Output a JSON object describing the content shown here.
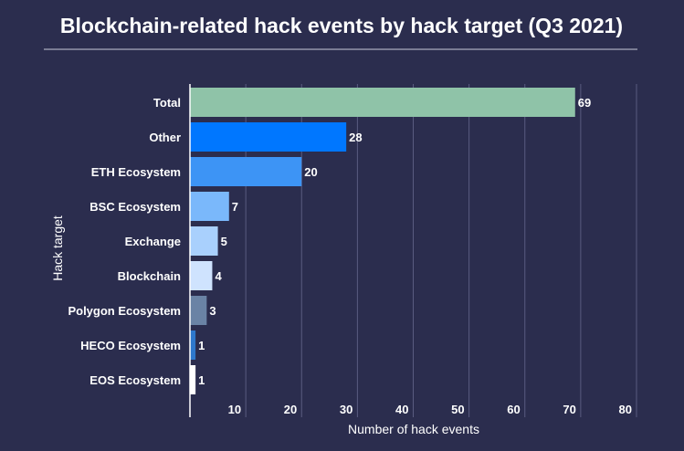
{
  "chart_data": {
    "type": "bar",
    "orientation": "horizontal",
    "title": "Blockchain-related hack events by hack target (Q3 2021)",
    "xlabel": "Number of hack events",
    "ylabel": "Hack target",
    "categories": [
      "Total",
      "Other",
      "ETH Ecosystem",
      "BSC Ecosystem",
      "Exchange",
      "Blockchain",
      "Polygon Ecosystem",
      "HECO Ecosystem",
      "EOS Ecosystem"
    ],
    "values": [
      69,
      28,
      20,
      7,
      5,
      4,
      3,
      1,
      1
    ],
    "colors": [
      "#8fc3a8",
      "#0077ff",
      "#3d94f5",
      "#7ab8fb",
      "#a9d0fd",
      "#cfe3fe",
      "#6a83a5",
      "#2e78cc",
      "#ffffff"
    ],
    "xlim": [
      0,
      80
    ],
    "xticks": [
      10,
      20,
      30,
      40,
      50,
      60,
      70,
      80
    ],
    "grid": true,
    "legend": "none"
  }
}
